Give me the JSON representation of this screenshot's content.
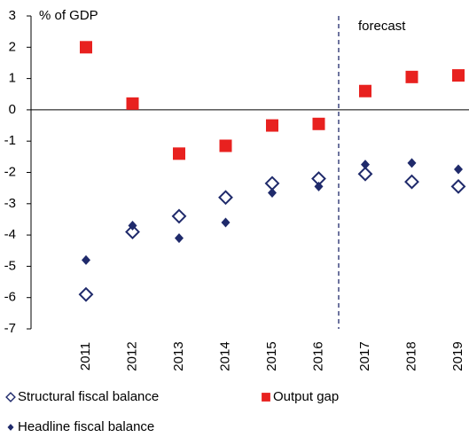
{
  "chart_data": {
    "type": "scatter",
    "y_axis_label": "% of GDP",
    "annotation": "forecast",
    "categories": [
      "2011",
      "2012",
      "2013",
      "2014",
      "2015",
      "2016",
      "2017",
      "2018",
      "2019"
    ],
    "series": [
      {
        "name": "Structural fiscal balance",
        "color": "#1f2a6b",
        "marker": "hollow-diamond",
        "values": [
          -5.9,
          -3.9,
          -3.4,
          -2.8,
          -2.35,
          -2.2,
          -2.05,
          -2.3,
          -2.45
        ]
      },
      {
        "name": "Output gap",
        "color": "#e8211f",
        "marker": "square",
        "values": [
          2.0,
          0.2,
          -1.4,
          -1.15,
          -0.5,
          -0.45,
          0.6,
          1.05,
          1.1
        ]
      },
      {
        "name": "Headline fiscal balance",
        "color": "#1f2a6b",
        "marker": "diamond",
        "values": [
          -4.8,
          -3.7,
          -4.1,
          -3.6,
          -2.65,
          -2.45,
          -1.75,
          -1.7,
          -1.9
        ]
      }
    ],
    "ylim": [
      -7,
      3
    ],
    "yticks": [
      -7,
      -6,
      -5,
      -4,
      -3,
      -2,
      -1,
      0,
      1,
      2,
      3
    ]
  }
}
